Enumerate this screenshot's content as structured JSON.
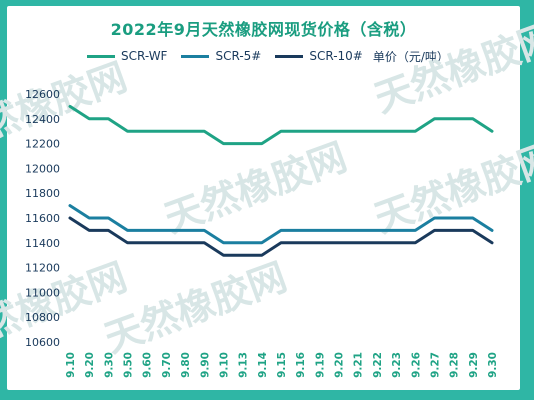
{
  "title": "2022年9月天然橡胶网现货价格（含税）",
  "legend": {
    "items": [
      {
        "name": "SCR-WF",
        "color": "#1fa385"
      },
      {
        "name": "SCR-5#",
        "color": "#1b7fa0"
      },
      {
        "name": "SCR-10#",
        "color": "#1a3a5c"
      }
    ],
    "unit": "单价（元/吨）"
  },
  "watermark": "天然橡胶网",
  "chart_data": {
    "type": "line",
    "title": "2022年9月天然橡胶网现货价格（含税）",
    "xlabel": "",
    "ylabel": "单价（元/吨）",
    "ylim": [
      10600,
      12600
    ],
    "yticks": [
      12600,
      12400,
      12200,
      12000,
      11800,
      11600,
      11400,
      11200,
      11000,
      10800,
      10600
    ],
    "grid": false,
    "legend_position": "top",
    "categories": [
      "9.10",
      "9.20",
      "9.30",
      "9.50",
      "9.60",
      "9.70",
      "9.80",
      "9.90",
      "9.10",
      "9.13",
      "9.14",
      "9.15",
      "9.16",
      "9.19",
      "9.20",
      "9.21",
      "9.22",
      "9.23",
      "9.26",
      "9.27",
      "9.28",
      "9.29",
      "9.30"
    ],
    "series": [
      {
        "name": "SCR-WF",
        "color": "#1fa385",
        "values": [
          12500,
          12400,
          12400,
          12300,
          12300,
          12300,
          12300,
          12300,
          12200,
          12200,
          12200,
          12300,
          12300,
          12300,
          12300,
          12300,
          12300,
          12300,
          12300,
          12400,
          12400,
          12400,
          12300
        ]
      },
      {
        "name": "SCR-5#",
        "color": "#1b7fa0",
        "values": [
          11700,
          11600,
          11600,
          11500,
          11500,
          11500,
          11500,
          11500,
          11400,
          11400,
          11400,
          11500,
          11500,
          11500,
          11500,
          11500,
          11500,
          11500,
          11500,
          11600,
          11600,
          11600,
          11500
        ]
      },
      {
        "name": "SCR-10#",
        "color": "#1a3a5c",
        "values": [
          11600,
          11500,
          11500,
          11400,
          11400,
          11400,
          11400,
          11400,
          11300,
          11300,
          11300,
          11400,
          11400,
          11400,
          11400,
          11400,
          11400,
          11400,
          11400,
          11500,
          11500,
          11500,
          11400
        ]
      }
    ]
  }
}
